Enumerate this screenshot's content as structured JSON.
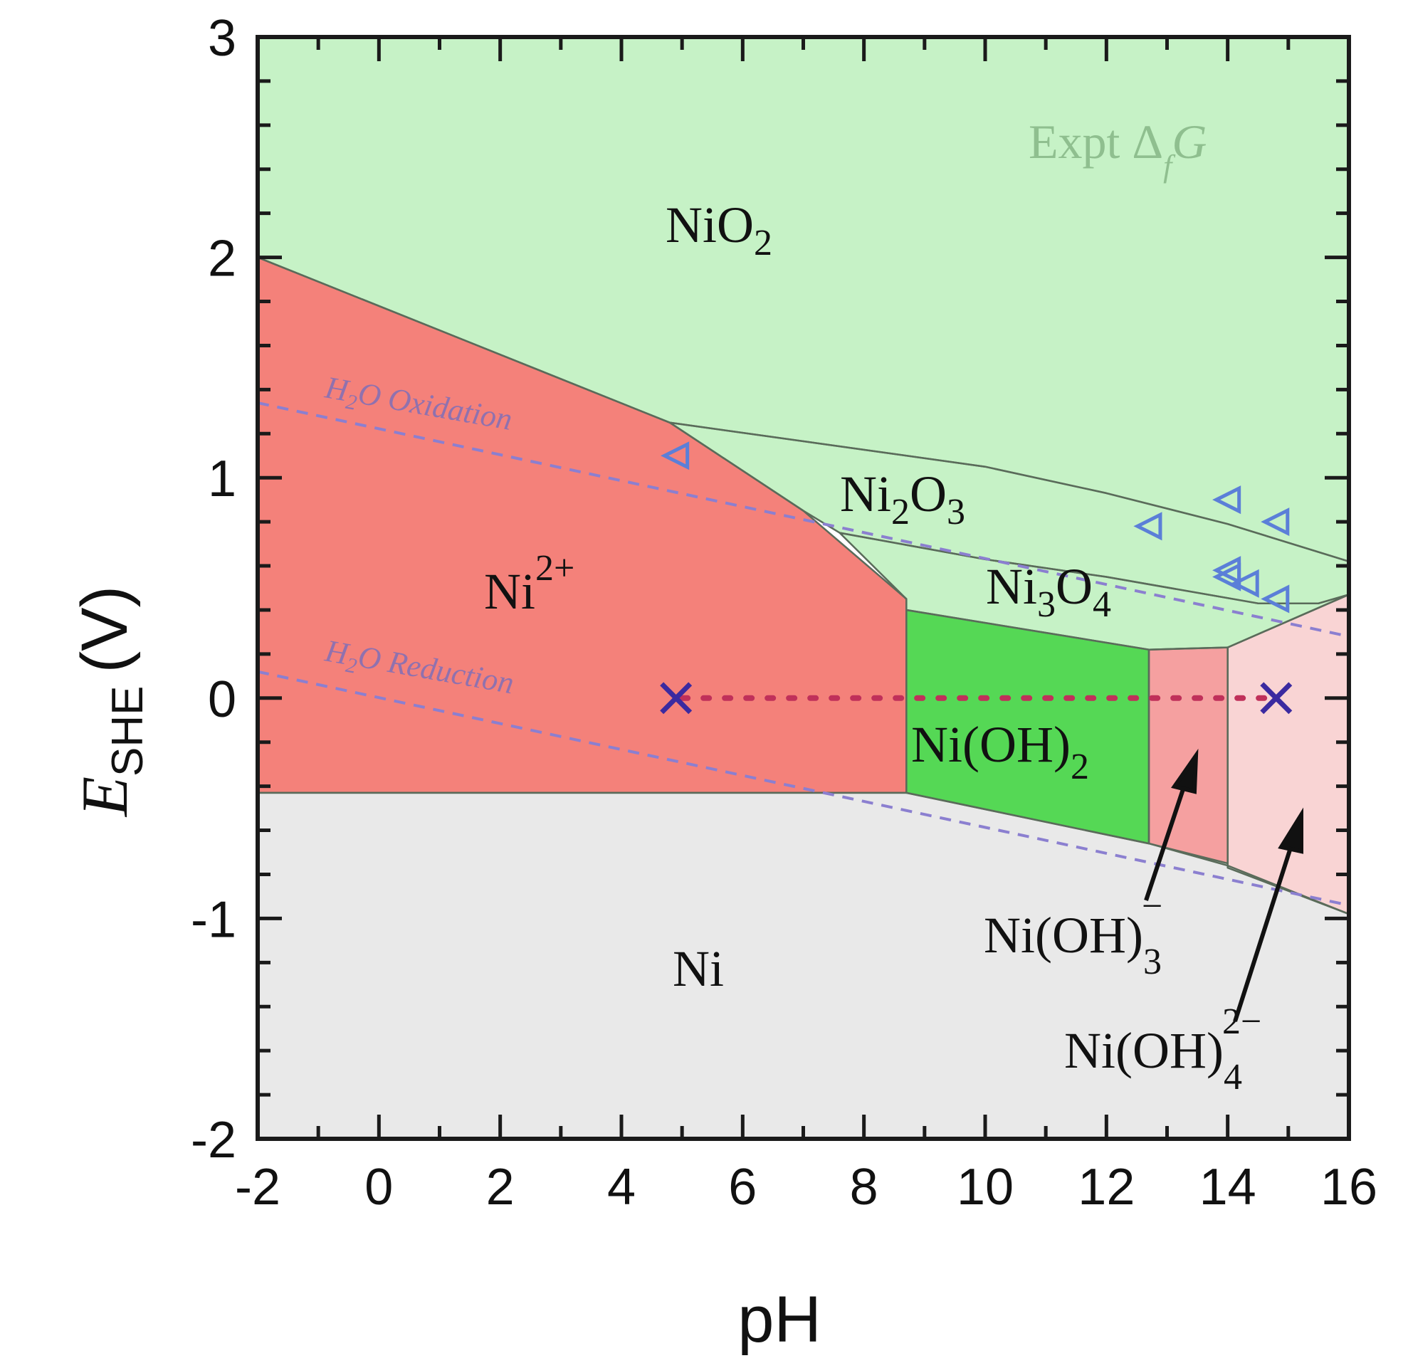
{
  "chart_data": {
    "type": "area",
    "xlabel": "pH",
    "ylabel": {
      "main": "E",
      "sub": "SHE",
      "unit": "(V)"
    },
    "xlim": [
      -2,
      16
    ],
    "ylim": [
      -2,
      3
    ],
    "xticks": [
      "-2",
      "0",
      "2",
      "4",
      "6",
      "8",
      "10",
      "12",
      "14",
      "16"
    ],
    "yticks": [
      "-2",
      "-1",
      "0",
      "1",
      "2",
      "3"
    ],
    "annotation": {
      "text": "Expt Δ",
      "sub": "f",
      "tail": "G"
    },
    "regions": [
      {
        "label": "NiO",
        "sub": "2",
        "color": "#c6f2c6",
        "polygon": [
          [
            -2,
            3
          ],
          [
            16,
            3
          ],
          [
            16,
            0.62
          ],
          [
            14,
            0.79
          ],
          [
            12,
            0.93
          ],
          [
            10,
            1.05
          ],
          [
            4.8,
            1.25
          ],
          [
            -2,
            2.0
          ]
        ]
      },
      {
        "label": "Ni",
        "sup": "2+",
        "color": "#f4817a",
        "polygon": [
          [
            -2,
            2.0
          ],
          [
            4.8,
            1.25
          ],
          [
            7,
            0.85
          ],
          [
            8.7,
            0.45
          ],
          [
            8.7,
            -0.43
          ],
          [
            -2,
            -0.43
          ]
        ]
      },
      {
        "label": "Ni",
        "sub": "2",
        "mid": "O",
        "sub2": "3",
        "color": "#c6f2c6",
        "polygon": [
          [
            4.8,
            1.25
          ],
          [
            10,
            1.05
          ],
          [
            12,
            0.93
          ],
          [
            14,
            0.79
          ],
          [
            16,
            0.62
          ],
          [
            16,
            0.47
          ],
          [
            15.5,
            0.43
          ],
          [
            14.5,
            0.43
          ],
          [
            12,
            0.55
          ],
          [
            10,
            0.63
          ],
          [
            7.6,
            0.75
          ],
          [
            7,
            0.85
          ]
        ]
      },
      {
        "label": "Ni",
        "sub": "3",
        "mid": "O",
        "sub2": "4",
        "color": "#c6f2c6",
        "polygon": [
          [
            7.6,
            0.75
          ],
          [
            10,
            0.63
          ],
          [
            12,
            0.55
          ],
          [
            14.5,
            0.43
          ],
          [
            15.5,
            0.43
          ],
          [
            16,
            0.47
          ],
          [
            14,
            0.23
          ],
          [
            12.7,
            0.22
          ],
          [
            8.7,
            0.4
          ],
          [
            8.7,
            0.45
          ]
        ]
      },
      {
        "label": "Ni(OH)",
        "sub": "2",
        "color": "#55d855",
        "polygon": [
          [
            8.7,
            0.4
          ],
          [
            12.7,
            0.22
          ],
          [
            12.7,
            -0.66
          ],
          [
            8.7,
            -0.43
          ]
        ]
      },
      {
        "label": "Ni(OH)",
        "sub": "3",
        "sup": "−",
        "color": "#f5a0a0",
        "polygon": [
          [
            12.7,
            0.22
          ],
          [
            14,
            0.23
          ],
          [
            14,
            -0.75
          ],
          [
            12.7,
            -0.66
          ]
        ]
      },
      {
        "label": "Ni(OH)",
        "sub": "4",
        "sup": "2−",
        "color": "#f9d4d4",
        "polygon": [
          [
            14,
            0.23
          ],
          [
            16,
            0.47
          ],
          [
            16,
            -0.98
          ],
          [
            14,
            -0.77
          ]
        ]
      },
      {
        "label": "Ni",
        "color": "#e9e9e9",
        "polygon": [
          [
            -2,
            -0.43
          ],
          [
            8.7,
            -0.43
          ],
          [
            12.7,
            -0.66
          ],
          [
            14,
            -0.76
          ],
          [
            16,
            -0.98
          ],
          [
            16,
            -2
          ],
          [
            -2,
            -2
          ]
        ]
      }
    ],
    "lines": [
      {
        "label": "H",
        "sub": "2",
        "tail": "O Oxidation",
        "x": [
          -2,
          16
        ],
        "y": [
          1.34,
          0.28
        ]
      },
      {
        "label": "H",
        "sub": "2",
        "tail": "O Reduction",
        "x": [
          -2,
          16
        ],
        "y": [
          0.12,
          -0.94
        ]
      }
    ],
    "dotted_line": {
      "x": [
        5,
        14.8
      ],
      "y": 0
    },
    "markers_x": [
      [
        4.9,
        0
      ],
      [
        14.8,
        0
      ]
    ],
    "markers_triangle": [
      [
        4.9,
        1.1
      ],
      [
        12.7,
        0.78
      ],
      [
        14,
        0.9
      ],
      [
        14.8,
        0.8
      ],
      [
        14,
        0.58
      ],
      [
        14,
        0.55
      ],
      [
        14.3,
        0.52
      ],
      [
        14.8,
        0.45
      ]
    ],
    "colors": {
      "marker": "#5b7fd8",
      "x_marker": "#3b2aa0",
      "water_line": "#8b7fd0",
      "dotted": "#c0305a"
    }
  }
}
